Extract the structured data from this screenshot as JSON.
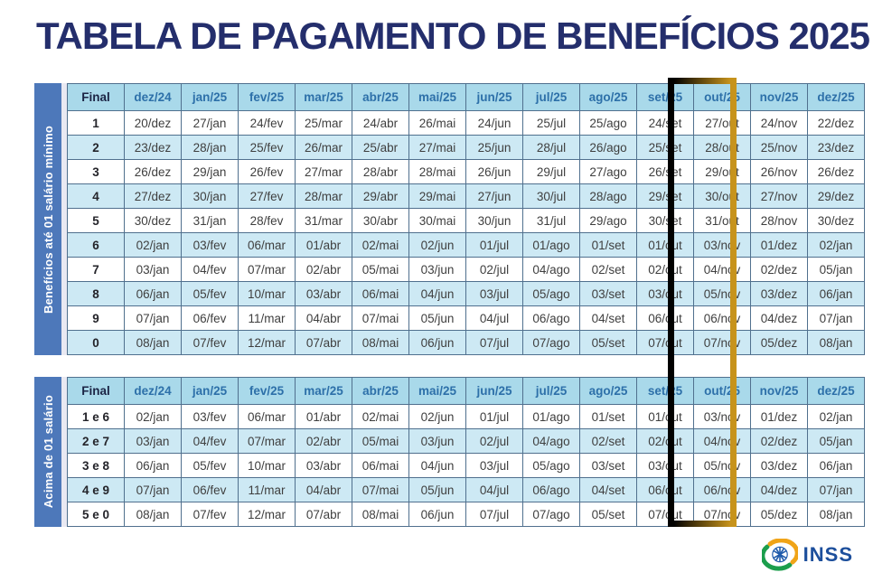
{
  "title": "TABELA DE PAGAMENTO DE BENEFÍCIOS 2025",
  "highlighted_column": "out/25",
  "colors": {
    "title_navy": "#242e6c",
    "header_bg": "#a9d9ea",
    "header_text": "#2d70a9",
    "row_alt_bg": "#cde9f4",
    "grid_border": "#50708e",
    "sidebar_blue": "#4d78ba",
    "highlight_black": "#000000",
    "highlight_gold": "#c8941c",
    "logo_blue": "#1d4f9c",
    "logo_green": "#1c9e4c",
    "logo_orange": "#f0a418"
  },
  "tables": [
    {
      "side_label": "Benefícios até 01 salário mínimo",
      "final_header": "Final",
      "months": [
        "dez/24",
        "jan/25",
        "fev/25",
        "mar/25",
        "abr/25",
        "mai/25",
        "jun/25",
        "jul/25",
        "ago/25",
        "set/25",
        "out/25",
        "nov/25",
        "dez/25"
      ],
      "rows": [
        {
          "final": "1",
          "cells": [
            "20/dez",
            "27/jan",
            "24/fev",
            "25/mar",
            "24/abr",
            "26/mai",
            "24/jun",
            "25/jul",
            "25/ago",
            "24/set",
            "27/out",
            "24/nov",
            "22/dez"
          ]
        },
        {
          "final": "2",
          "cells": [
            "23/dez",
            "28/jan",
            "25/fev",
            "26/mar",
            "25/abr",
            "27/mai",
            "25/jun",
            "28/jul",
            "26/ago",
            "25/set",
            "28/out",
            "25/nov",
            "23/dez"
          ]
        },
        {
          "final": "3",
          "cells": [
            "26/dez",
            "29/jan",
            "26/fev",
            "27/mar",
            "28/abr",
            "28/mai",
            "26/jun",
            "29/jul",
            "27/ago",
            "26/set",
            "29/out",
            "26/nov",
            "26/dez"
          ]
        },
        {
          "final": "4",
          "cells": [
            "27/dez",
            "30/jan",
            "27/fev",
            "28/mar",
            "29/abr",
            "29/mai",
            "27/jun",
            "30/jul",
            "28/ago",
            "29/set",
            "30/out",
            "27/nov",
            "29/dez"
          ]
        },
        {
          "final": "5",
          "cells": [
            "30/dez",
            "31/jan",
            "28/fev",
            "31/mar",
            "30/abr",
            "30/mai",
            "30/jun",
            "31/jul",
            "29/ago",
            "30/set",
            "31/out",
            "28/nov",
            "30/dez"
          ]
        },
        {
          "final": "6",
          "cells": [
            "02/jan",
            "03/fev",
            "06/mar",
            "01/abr",
            "02/mai",
            "02/jun",
            "01/jul",
            "01/ago",
            "01/set",
            "01/out",
            "03/nov",
            "01/dez",
            "02/jan"
          ]
        },
        {
          "final": "7",
          "cells": [
            "03/jan",
            "04/fev",
            "07/mar",
            "02/abr",
            "05/mai",
            "03/jun",
            "02/jul",
            "04/ago",
            "02/set",
            "02/out",
            "04/nov",
            "02/dez",
            "05/jan"
          ]
        },
        {
          "final": "8",
          "cells": [
            "06/jan",
            "05/fev",
            "10/mar",
            "03/abr",
            "06/mai",
            "04/jun",
            "03/jul",
            "05/ago",
            "03/set",
            "03/out",
            "05/nov",
            "03/dez",
            "06/jan"
          ]
        },
        {
          "final": "9",
          "cells": [
            "07/jan",
            "06/fev",
            "11/mar",
            "04/abr",
            "07/mai",
            "05/jun",
            "04/jul",
            "06/ago",
            "04/set",
            "06/out",
            "06/nov",
            "04/dez",
            "07/jan"
          ]
        },
        {
          "final": "0",
          "cells": [
            "08/jan",
            "07/fev",
            "12/mar",
            "07/abr",
            "08/mai",
            "06/jun",
            "07/jul",
            "07/ago",
            "05/set",
            "07/out",
            "07/nov",
            "05/dez",
            "08/jan"
          ]
        }
      ]
    },
    {
      "side_label": "Acima de 01 salário",
      "final_header": "Final",
      "months": [
        "dez/24",
        "jan/25",
        "fev/25",
        "mar/25",
        "abr/25",
        "mai/25",
        "jun/25",
        "jul/25",
        "ago/25",
        "set/25",
        "out/25",
        "nov/25",
        "dez/25"
      ],
      "rows": [
        {
          "final": "1 e 6",
          "cells": [
            "02/jan",
            "03/fev",
            "06/mar",
            "01/abr",
            "02/mai",
            "02/jun",
            "01/jul",
            "01/ago",
            "01/set",
            "01/out",
            "03/nov",
            "01/dez",
            "02/jan"
          ]
        },
        {
          "final": "2 e 7",
          "cells": [
            "03/jan",
            "04/fev",
            "07/mar",
            "02/abr",
            "05/mai",
            "03/jun",
            "02/jul",
            "04/ago",
            "02/set",
            "02/out",
            "04/nov",
            "02/dez",
            "05/jan"
          ]
        },
        {
          "final": "3 e 8",
          "cells": [
            "06/jan",
            "05/fev",
            "10/mar",
            "03/abr",
            "06/mai",
            "04/jun",
            "03/jul",
            "05/ago",
            "03/set",
            "03/out",
            "05/nov",
            "03/dez",
            "06/jan"
          ]
        },
        {
          "final": "4 e 9",
          "cells": [
            "07/jan",
            "06/fev",
            "11/mar",
            "04/abr",
            "07/mai",
            "05/jun",
            "04/jul",
            "06/ago",
            "04/set",
            "06/out",
            "06/nov",
            "04/dez",
            "07/jan"
          ]
        },
        {
          "final": "5 e 0",
          "cells": [
            "08/jan",
            "07/fev",
            "12/mar",
            "07/abr",
            "08/mai",
            "06/jun",
            "07/jul",
            "07/ago",
            "05/set",
            "07/out",
            "07/nov",
            "05/dez",
            "08/jan"
          ]
        }
      ]
    }
  ],
  "footer": {
    "logo_text": "INSS"
  }
}
